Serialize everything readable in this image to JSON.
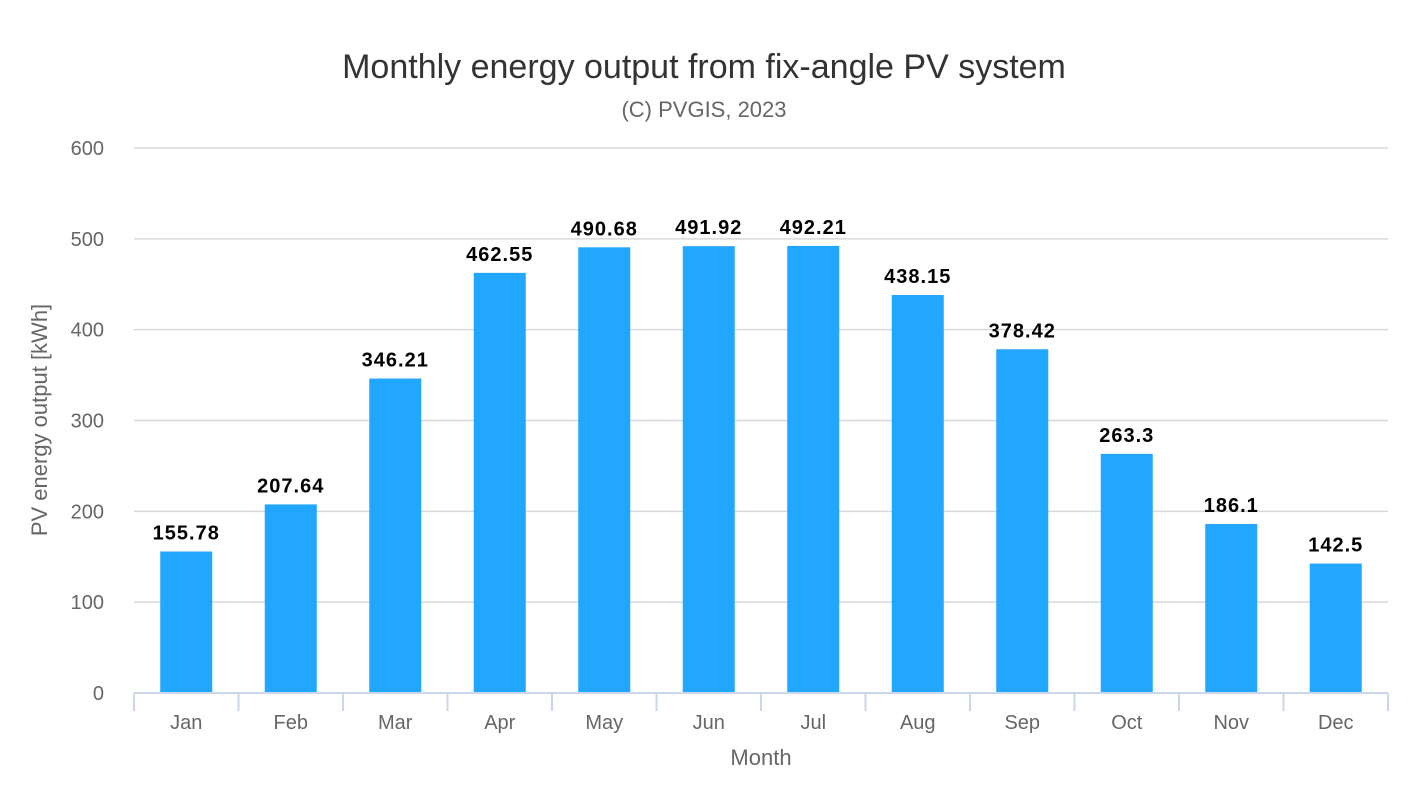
{
  "chart_data": {
    "type": "bar",
    "title": "Monthly energy output from fix-angle PV system",
    "subtitle": "(C) PVGIS, 2023",
    "xlabel": "Month",
    "ylabel": "PV energy output [kWh]",
    "categories": [
      "Jan",
      "Feb",
      "Mar",
      "Apr",
      "May",
      "Jun",
      "Jul",
      "Aug",
      "Sep",
      "Oct",
      "Nov",
      "Dec"
    ],
    "values": [
      155.78,
      207.64,
      346.21,
      462.55,
      490.68,
      491.92,
      492.21,
      438.15,
      378.42,
      263.3,
      186.1,
      142.5
    ],
    "data_labels": [
      "155.78",
      "207.64",
      "346.21",
      "462.55",
      "490.68",
      "491.92",
      "492.21",
      "438.15",
      "378.42",
      "263.3",
      "186.1",
      "142.5"
    ],
    "ylim": [
      0,
      600
    ],
    "yticks": [
      "0",
      "100",
      "200",
      "300",
      "400",
      "500",
      "600"
    ],
    "grid": true,
    "legend": "none",
    "bar_color": "#21a7ff"
  }
}
